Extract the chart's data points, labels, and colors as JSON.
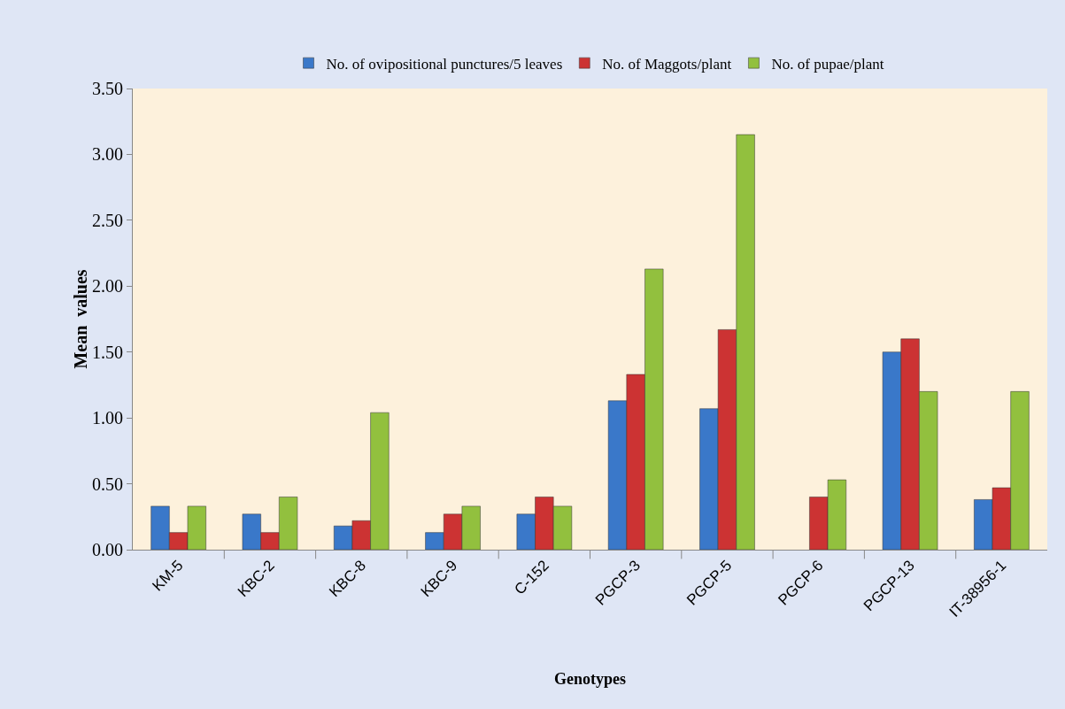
{
  "chart_data": {
    "type": "bar",
    "xlabel": "Genotypes",
    "ylabel": "Mean  values",
    "categories": [
      "KM-5",
      "KBC-2",
      "KBC-8",
      "KBC-9",
      "C-152",
      "PGCP-3",
      "PGCP-5",
      "PGCP-6",
      "PGCP-13",
      "IT-38956-1"
    ],
    "series": [
      {
        "name": "No. of ovipositional punctures/5 leaves",
        "color": "#3a78c9",
        "values": [
          0.33,
          0.27,
          0.18,
          0.13,
          0.27,
          1.13,
          1.07,
          0,
          1.5,
          0.38
        ]
      },
      {
        "name": "No. of Maggots/plant",
        "color": "#cc3333",
        "values": [
          0.13,
          0.13,
          0.22,
          0.27,
          0.4,
          1.33,
          1.67,
          0.4,
          1.6,
          0.47
        ]
      },
      {
        "name": "No. of pupae/plant",
        "color": "#92c03e",
        "values": [
          0.33,
          0.4,
          1.04,
          0.33,
          0.33,
          2.13,
          3.15,
          0.53,
          1.2,
          1.2
        ]
      }
    ],
    "ylim": [
      0,
      3.5
    ],
    "yticks": [
      {
        "value": 0,
        "label": "0.00"
      },
      {
        "value": 0.5,
        "label": "0.50"
      },
      {
        "value": 1,
        "label": "1.00"
      },
      {
        "value": 1.5,
        "label": "1.50"
      },
      {
        "value": 2,
        "label": "2.00"
      },
      {
        "value": 2.5,
        "label": "2.50"
      },
      {
        "value": 3,
        "label": "3.00"
      },
      {
        "value": 3.5,
        "label": "3.50"
      }
    ],
    "grid": false,
    "legend": "top"
  }
}
